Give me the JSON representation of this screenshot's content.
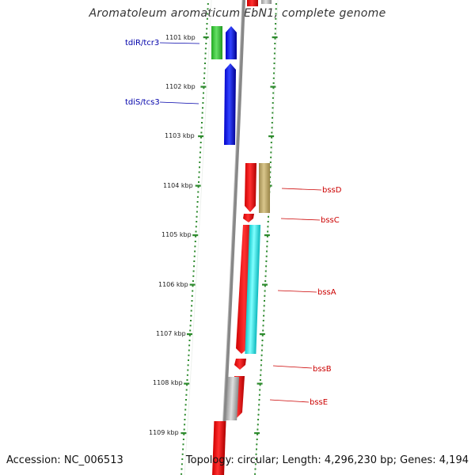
{
  "title": "Aromatoleum aromaticum EbN1, complete genome",
  "footer": {
    "accession": "Accession: NC_006513",
    "summary": "Topology: circular; Length: 4,296,230 bp; Genes: 4,194"
  },
  "ticks": [
    {
      "label": "1101 kbp",
      "kbp": 1101
    },
    {
      "label": "1102 kbp",
      "kbp": 1102
    },
    {
      "label": "1103 kbp",
      "kbp": 1103
    },
    {
      "label": "1104 kbp",
      "kbp": 1104
    },
    {
      "label": "1105 kbp",
      "kbp": 1105
    },
    {
      "label": "1106 kbp",
      "kbp": 1106
    },
    {
      "label": "1107 kbp",
      "kbp": 1107
    },
    {
      "label": "1108 kbp",
      "kbp": 1108
    },
    {
      "label": "1109 kbp",
      "kbp": 1109
    }
  ],
  "genes": [
    {
      "label": "tdiR/tcr3",
      "color": "#0000aa"
    },
    {
      "label": "tdiS/tcs3",
      "color": "#0000aa"
    },
    {
      "label": "bssD",
      "color": "#cc0000"
    },
    {
      "label": "bssC",
      "color": "#cc0000"
    },
    {
      "label": "bssA",
      "color": "#cc0000"
    },
    {
      "label": "bssB",
      "color": "#cc0000"
    },
    {
      "label": "bssE",
      "color": "#cc0000"
    }
  ],
  "colors": {
    "tick": "#2d8a2d",
    "backbone": "#8a8a8a",
    "strand_blue": "#0a1fe0",
    "strand_red": "#ff0000",
    "strand_green": "#33cc33",
    "feature_khaki": "#bca66a",
    "feature_cyan": "#1fe8ea",
    "feature_grey": "#b4b4b4"
  }
}
